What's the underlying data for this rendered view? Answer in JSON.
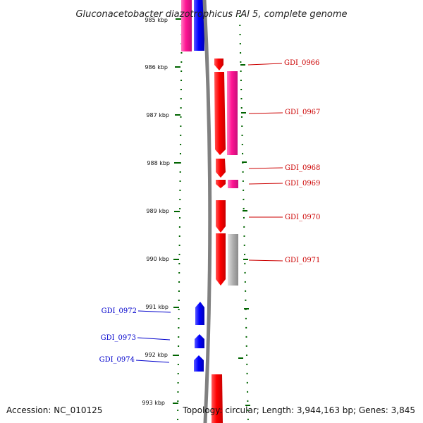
{
  "title": "Gluconacetobacter diazotrophicus PAl 5, complete genome",
  "accession": "Accession: NC_010125",
  "topology": "Topology: circular; Length: 3,944,163 bp; Genes: 3,845",
  "scale_labels": [
    "985 kbp",
    "986 kbp",
    "987 kbp",
    "988 kbp",
    "989 kbp",
    "990 kbp",
    "991 kbp",
    "992 kbp",
    "993 kbp"
  ],
  "colors": {
    "forward_gene": "#ff0000",
    "reverse_gene": "#0000ff",
    "pink_feature": "#ff1493",
    "gray_feature": "#b3b3b3",
    "backbone": "#808080",
    "tick": "#006400"
  },
  "genes": [
    {
      "id": "GDI_0966",
      "strand": "forward",
      "start_kbp": 985.92,
      "end_kbp": 986.08
    },
    {
      "id": "GDI_0967",
      "strand": "forward",
      "start_kbp": 986.12,
      "end_kbp": 987.83
    },
    {
      "id": "GDI_0968",
      "strand": "forward",
      "start_kbp": 987.92,
      "end_kbp": 988.3
    },
    {
      "id": "GDI_0969",
      "strand": "forward",
      "start_kbp": 988.35,
      "end_kbp": 988.5
    },
    {
      "id": "GDI_0970",
      "strand": "forward",
      "start_kbp": 988.78,
      "end_kbp": 989.45
    },
    {
      "id": "GDI_0971",
      "strand": "forward",
      "start_kbp": 989.5,
      "end_kbp": 990.55
    },
    {
      "id": "GDI_0972",
      "strand": "reverse",
      "start_kbp": 990.9,
      "end_kbp": 991.35
    },
    {
      "id": "GDI_0973",
      "strand": "reverse",
      "start_kbp": 991.55,
      "end_kbp": 991.8
    },
    {
      "id": "GDI_0974",
      "strand": "reverse",
      "start_kbp": 992.0,
      "end_kbp": 992.3
    }
  ],
  "label_color_forward": "#cc0000",
  "label_color_reverse": "#0000cc"
}
